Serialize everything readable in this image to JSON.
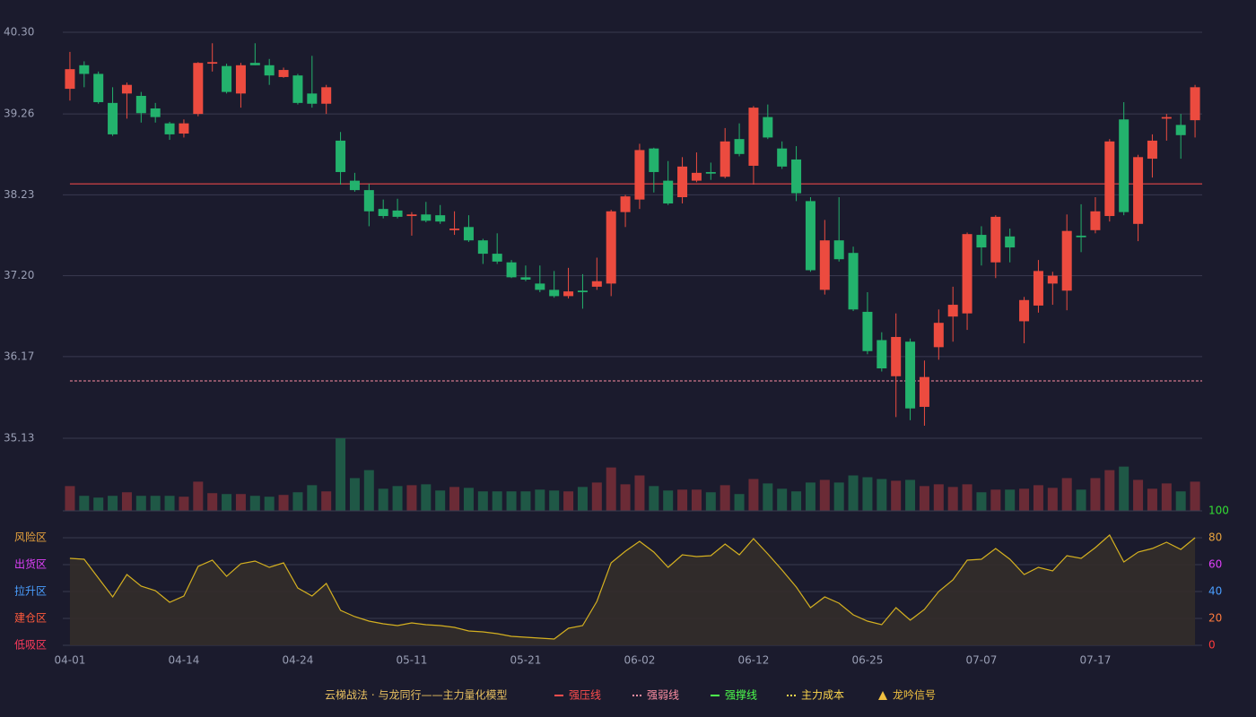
{
  "chart_data": [
    {
      "type": "candlestick",
      "categories": [
        "04-01",
        null,
        null,
        null,
        null,
        null,
        null,
        null,
        "04-14",
        null,
        null,
        null,
        null,
        null,
        null,
        null,
        "04-24",
        null,
        null,
        null,
        null,
        null,
        null,
        null,
        "05-11",
        null,
        null,
        null,
        null,
        null,
        null,
        null,
        "05-21",
        null,
        null,
        null,
        null,
        null,
        null,
        null,
        "06-02",
        null,
        null,
        null,
        null,
        null,
        null,
        null,
        "06-12",
        null,
        null,
        null,
        null,
        null,
        null,
        null,
        "06-25",
        null,
        null,
        null,
        null,
        null,
        null,
        null,
        "07-07",
        null,
        null,
        null,
        null,
        null,
        null,
        null,
        "07-17",
        null,
        null,
        null,
        null,
        null,
        null,
        null
      ],
      "open": [
        39.58,
        39.88,
        39.77,
        39.4,
        39.52,
        39.49,
        39.33,
        39.14,
        39.01,
        39.26,
        39.9,
        39.87,
        39.52,
        39.91,
        39.88,
        39.73,
        39.75,
        39.52,
        39.39,
        38.92,
        38.41,
        38.29,
        38.05,
        38.03,
        37.96,
        37.98,
        37.97,
        37.78,
        37.82,
        37.65,
        37.48,
        37.37,
        37.18,
        37.1,
        37.02,
        36.94,
        37.01,
        37.06,
        37.1,
        38.01,
        38.17,
        38.82,
        38.41,
        38.2,
        38.41,
        38.52,
        38.46,
        38.94,
        38.6,
        39.22,
        38.82,
        38.68,
        38.15,
        37.02,
        37.65,
        37.49,
        36.74,
        36.38,
        35.92,
        36.36,
        35.53,
        36.29,
        36.68,
        36.72,
        37.72,
        37.37,
        37.7,
        36.62,
        36.82,
        37.1,
        37.01,
        37.71,
        37.78,
        37.96,
        39.19,
        37.86,
        38.69,
        39.2,
        39.12,
        39.18
      ],
      "high": [
        40.05,
        39.93,
        39.8,
        39.6,
        39.66,
        39.54,
        39.4,
        39.16,
        39.19,
        39.92,
        40.16,
        39.9,
        39.91,
        40.16,
        39.96,
        39.85,
        39.77,
        40.0,
        39.63,
        39.03,
        38.51,
        38.37,
        38.17,
        38.18,
        38.01,
        38.14,
        38.1,
        38.02,
        37.97,
        37.67,
        37.74,
        37.4,
        37.33,
        37.33,
        37.26,
        37.3,
        37.22,
        37.43,
        38.04,
        38.23,
        38.88,
        38.83,
        38.66,
        38.71,
        38.77,
        38.64,
        39.08,
        39.14,
        39.36,
        39.38,
        38.91,
        38.85,
        38.2,
        37.91,
        38.2,
        37.57,
        36.99,
        36.48,
        36.72,
        36.4,
        36.12,
        36.77,
        37.06,
        37.75,
        37.83,
        37.97,
        37.8,
        36.93,
        37.4,
        37.25,
        37.98,
        38.11,
        38.2,
        38.94,
        39.41,
        38.74,
        39.0,
        39.26,
        39.26,
        39.63
      ],
      "low": [
        39.43,
        39.6,
        39.39,
        38.98,
        39.2,
        39.15,
        39.15,
        38.93,
        38.96,
        39.23,
        39.8,
        39.52,
        39.34,
        39.88,
        39.63,
        39.72,
        39.38,
        39.34,
        39.26,
        38.36,
        38.27,
        37.83,
        37.93,
        37.93,
        37.71,
        37.88,
        37.86,
        37.72,
        37.63,
        37.35,
        37.35,
        37.17,
        37.13,
        36.99,
        36.92,
        36.91,
        36.78,
        37.02,
        36.94,
        37.82,
        38.05,
        38.26,
        38.1,
        38.12,
        38.39,
        38.42,
        38.44,
        38.72,
        38.36,
        38.94,
        38.56,
        38.15,
        37.25,
        36.96,
        37.38,
        36.75,
        36.2,
        35.98,
        35.4,
        35.36,
        35.29,
        36.13,
        36.36,
        36.51,
        37.33,
        37.17,
        37.37,
        36.34,
        36.73,
        36.83,
        36.76,
        37.5,
        37.74,
        37.89,
        37.97,
        37.64,
        38.45,
        38.92,
        38.69,
        38.96
      ],
      "close": [
        39.83,
        39.77,
        39.41,
        39.0,
        39.63,
        39.27,
        39.22,
        39.0,
        39.14,
        39.91,
        39.92,
        39.54,
        39.88,
        39.88,
        39.75,
        39.82,
        39.4,
        39.39,
        39.6,
        38.52,
        38.29,
        38.02,
        37.96,
        37.95,
        37.98,
        37.9,
        37.89,
        37.8,
        37.65,
        37.48,
        37.38,
        37.18,
        37.15,
        37.02,
        36.94,
        37.0,
        36.99,
        37.13,
        38.02,
        38.21,
        38.8,
        38.52,
        38.12,
        38.59,
        38.51,
        38.5,
        38.91,
        38.75,
        39.34,
        38.96,
        38.59,
        38.25,
        37.27,
        37.65,
        37.41,
        36.77,
        36.24,
        36.02,
        36.42,
        35.51,
        35.91,
        36.6,
        36.83,
        37.73,
        37.56,
        37.95,
        37.56,
        36.89,
        37.26,
        37.2,
        37.77,
        37.69,
        38.02,
        38.91,
        38.01,
        38.71,
        38.92,
        39.22,
        38.99,
        39.6
      ],
      "up_color": "#ec4b3f",
      "down_color": "#23b26d",
      "ylim": [
        35.13,
        40.3
      ],
      "yticks": [
        {
          "value": 40.3,
          "label": "40.30"
        },
        39.26,
        38.23,
        {
          "value": 37.2,
          "label": "37.20"
        },
        36.17,
        35.13
      ],
      "grid": true,
      "lines": [
        {
          "name": "强压线",
          "color": "#ff4d4d",
          "style": "solid",
          "value": 38.37
        },
        {
          "name": "强弱线",
          "color": "#ff8fa3",
          "style": "dashed",
          "value": 35.86
        },
        {
          "name": "强撑线",
          "color": "#4dff4d",
          "style": "solid",
          "value": null
        },
        {
          "name": "主力成本",
          "color": "#ffd84d",
          "style": "dashed",
          "value": null
        }
      ],
      "signal": {
        "name": "龙吟信号",
        "color": "#f0c040"
      },
      "legend_title": "云梯战法 · 与龙同行——主力量化模型"
    },
    {
      "type": "bar",
      "values": [
        28,
        17,
        15,
        17,
        21,
        17,
        17,
        17,
        16,
        33,
        20,
        19,
        19,
        17,
        16,
        18,
        21,
        29,
        22,
        82,
        37,
        46,
        25,
        28,
        29,
        30,
        23,
        27,
        26,
        22,
        22,
        22,
        22,
        24,
        23,
        22,
        27,
        32,
        49,
        30,
        40,
        28,
        23,
        24,
        24,
        21,
        29,
        19,
        36,
        31,
        25,
        22,
        32,
        35,
        32,
        40,
        38,
        36,
        34,
        35,
        28,
        30,
        27,
        30,
        21,
        24,
        24,
        25,
        29,
        26,
        37,
        24,
        37,
        46,
        50,
        35,
        25,
        31,
        22,
        33
      ],
      "up_color": "#6b2b36",
      "down_color": "#1f5846"
    },
    {
      "type": "area",
      "values": [
        64.7,
        64,
        50,
        36,
        52.7,
        44,
        40.7,
        32,
        36.7,
        58.7,
        63.3,
        51.3,
        60.7,
        62.7,
        58,
        61.3,
        42.7,
        36.7,
        46,
        26,
        21.3,
        18,
        16,
        14.7,
        16.7,
        15.3,
        14.7,
        13.3,
        10.7,
        10,
        8.7,
        6.7,
        6,
        5.3,
        4.7,
        12.7,
        14.7,
        32.7,
        61.3,
        70,
        77.3,
        69.3,
        58,
        67.3,
        66,
        66.7,
        75.3,
        67.3,
        79.3,
        68,
        56,
        43.3,
        28,
        36,
        31.3,
        22.7,
        18,
        15.3,
        28,
        18.7,
        26.7,
        40,
        48.7,
        63.3,
        64,
        72,
        64,
        52.7,
        58,
        55.3,
        66.7,
        64.7,
        72.7,
        82,
        62,
        69.3,
        72,
        76.7,
        71.3,
        80
      ],
      "color": "#d4b020",
      "fill": "#332e2a",
      "ylim": [
        0,
        100
      ],
      "yticks": [
        0,
        20,
        40,
        60,
        80,
        100
      ],
      "ytick_colors": [
        "#ff3b3b",
        "#ff7a3c",
        "#4a9eff",
        "#e040fb",
        "#e8a33d",
        "#33dd33"
      ],
      "zones": [
        {
          "label": "风险区",
          "value": 80,
          "color": "#e8a33d"
        },
        {
          "label": "出货区",
          "value": 60,
          "color": "#e040fb"
        },
        {
          "label": "拉升区",
          "value": 40,
          "color": "#4a9eff"
        },
        {
          "label": "建仓区",
          "value": 20,
          "color": "#ff5a3c"
        },
        {
          "label": "低吸区",
          "value": 0,
          "color": "#ff3b5c"
        }
      ]
    }
  ]
}
